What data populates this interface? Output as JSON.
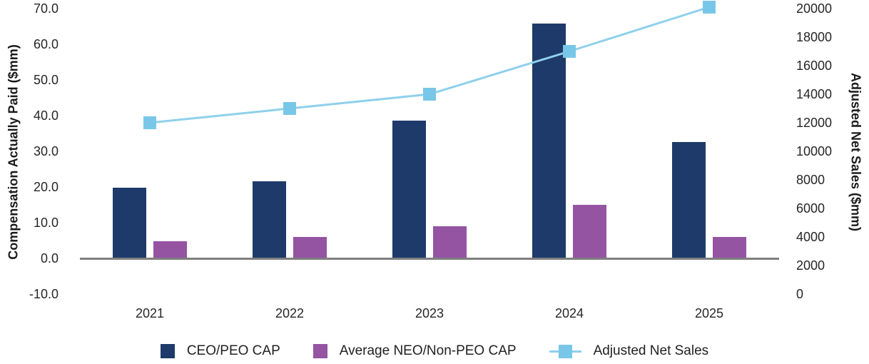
{
  "chart_data": {
    "type": "bar",
    "combo": "grouped bars on left axis with line + square markers on right axis",
    "title": "",
    "categories": [
      "2021",
      "2022",
      "2023",
      "2024",
      "2025"
    ],
    "series": [
      {
        "name": "CEO/PEO CAP",
        "kind": "bar",
        "axis": "left",
        "color": "#1e3a6a",
        "values": [
          19.9,
          21.7,
          38.7,
          65.9,
          32.7
        ]
      },
      {
        "name": "Average NEO/Non-PEO CAP",
        "kind": "bar",
        "axis": "left",
        "color": "#9454a2",
        "values": [
          4.8,
          6.0,
          9.0,
          15.0,
          6.0
        ]
      },
      {
        "name": "Adjusted Net Sales",
        "kind": "line",
        "axis": "right",
        "color": "#79c7e8",
        "line_color": "#8ed0ec",
        "values": [
          12000,
          13000,
          14000,
          17000,
          20100
        ]
      }
    ],
    "left_axis": {
      "label": "Compensation Actually Paid ($mm)",
      "min": -10,
      "max": 70,
      "tick_step": 10,
      "ticks": [
        "70.0",
        "60.0",
        "50.0",
        "40.0",
        "30.0",
        "20.0",
        "10.0",
        "0.0",
        "-10.0"
      ]
    },
    "right_axis": {
      "label": "Adjusted Net Sales ($mm)",
      "min": 0,
      "max": 20000,
      "tick_step": 2000,
      "ticks": [
        "20000",
        "18000",
        "16000",
        "14000",
        "12000",
        "10000",
        "8000",
        "6000",
        "4000",
        "2000",
        "0"
      ]
    },
    "legend": {
      "position": "bottom",
      "entries": [
        "CEO/PEO CAP",
        "Average NEO/Non-PEO CAP",
        "Adjusted Net Sales"
      ]
    },
    "grid": false,
    "colors": {
      "axis_line": "#7f7f7f",
      "text": "#262626"
    }
  }
}
